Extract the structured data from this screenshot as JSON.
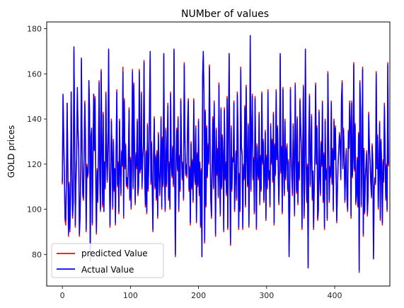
{
  "chart_data": {
    "type": "line",
    "title": "NUMber of values",
    "xlabel": "",
    "ylabel": "GOLD prices",
    "xlim": [
      -23,
      481
    ],
    "ylim": [
      66,
      183
    ],
    "x_ticks": [
      0,
      100,
      200,
      300,
      400
    ],
    "y_ticks": [
      80,
      100,
      120,
      140,
      160,
      180
    ],
    "grid": false,
    "legend_position": "lower-left",
    "series": [
      {
        "name": "predicted Value",
        "color": "#ff0000",
        "values": [
          111,
          150,
          133,
          114,
          95,
          93,
          113,
          147,
          121,
          88,
          112,
          90,
          106,
          152,
          118,
          96,
          104,
          170,
          138,
          92,
          113,
          124,
          153,
          136,
          127,
          88,
          96,
          117,
          166,
          128,
          106,
          104,
          126,
          148,
          131,
          90,
          120,
          114,
          116,
          157,
          143,
          79,
          133,
          135,
          93,
          122,
          151,
          127,
          150,
          115,
          89,
          118,
          103,
          125,
          157,
          113,
          99,
          162,
          128,
          101,
          143,
          99,
          120,
          109,
          152,
          124,
          112,
          130,
          170,
          119,
          92,
          113,
          140,
          124,
          100,
          131,
          108,
          117,
          93,
          128,
          153,
          110,
          121,
          98,
          140,
          117,
          106,
          126,
          119,
          163,
          96,
          149,
          118,
          129,
          110,
          113,
          109,
          124,
          145,
          104,
          123,
          100,
          126,
          162,
          109,
          156,
          127,
          102,
          125,
          118,
          140,
          106,
          110,
          162,
          116,
          119,
          152,
          109,
          123,
          128,
          166,
          113,
          101,
          126,
          98,
          138,
          108,
          121,
          145,
          169,
          111,
          130,
          109,
          90,
          125,
          141,
          109,
          124,
          104,
          126,
          96,
          134,
          116,
          106,
          118,
          141,
          100,
          132,
          110,
          168,
          117,
          99,
          136,
          110,
          125,
          147,
          104,
          121,
          100,
          152,
          121,
          114,
          128,
          110,
          170,
          118,
          79,
          122,
          136,
          117,
          141,
          99,
          124,
          108,
          149,
          126,
          113,
          121,
          104,
          165,
          134,
          115,
          120,
          114,
          139,
          149,
          108,
          119,
          93,
          130,
          109,
          122,
          103,
          149,
          116,
          111,
          137,
          94,
          125,
          110,
          140,
          106,
          121,
          92,
          118,
          79,
          158,
          169,
          152,
          85,
          144,
          101,
          137,
          114,
          129,
          120,
          164,
          131,
          104,
          96,
          121,
          141,
          109,
          148,
          123,
          88,
          136,
          115,
          127,
          105,
          156,
          114,
          97,
          145,
          109,
          133,
          124,
          90,
          145,
          113,
          121,
          106,
          150,
          91,
          137,
          168,
          113,
          84,
          137,
          108,
          123,
          122,
          148,
          99,
          114,
          126,
          104,
          152,
          133,
          91,
          116,
          99,
          163,
          128,
          125,
          91,
          120,
          113,
          146,
          101,
          155,
          124,
          110,
          138,
          92,
          119,
          176,
          108,
          135,
          151,
          113,
          123,
          98,
          150,
          126,
          91,
          129,
          116,
          113,
          143,
          102,
          124,
          108,
          152,
          120,
          131,
          103,
          118,
          135,
          95,
          124,
          109,
          153,
          113,
          116,
          101,
          138,
          120,
          131,
          112,
          143,
          93,
          129,
          115,
          153,
          123,
          137,
          118,
          102,
          120,
          168,
          116,
          128,
          98,
          154,
          117,
          106,
          140,
          113,
          126,
          129,
          108,
          122,
          81,
          101,
          154,
          126,
          114,
          106,
          138,
          123,
          97,
          156,
          127,
          107,
          141,
          102,
          121,
          113,
          149,
          137,
          128,
          91,
          125,
          155,
          96,
          113,
          170,
          125,
          103,
          120,
          75,
          133,
          151,
          110,
          124,
          142,
          104,
          116,
          91,
          110,
          125,
          156,
          121,
          137,
          95,
          99,
          144,
          113,
          106,
          130,
          119,
          148,
          103,
          125,
          91,
          140,
          113,
          118,
          95,
          161,
          132,
          103,
          119,
          114,
          148,
          111,
          127,
          99,
          140,
          123,
          137,
          116,
          94,
          108,
          121,
          127,
          134,
          130,
          113,
          150,
          157,
          119,
          136,
          124,
          103,
          119,
          127,
          105,
          99,
          135,
          128,
          148,
          138,
          96,
          148,
          114,
          123,
          165,
          117,
          138,
          102,
          106,
          123,
          101,
          134,
          72,
          157,
          143,
          101,
          124,
          163,
          88,
          127,
          98,
          113,
          120,
          126,
          97,
          105,
          143,
          128,
          122,
          111,
          105,
          129,
          121,
          79,
          109,
          113,
          111,
          161,
          119,
          133,
          100,
          116,
          139,
          95,
          131,
          118,
          93,
          122,
          112,
          147,
          126,
          104,
          120,
          99,
          165,
          119
        ]
      },
      {
        "name": "Actual Value",
        "color": "#0000ff",
        "values": [
          112,
          151,
          131,
          115,
          96,
          95,
          112,
          147,
          122,
          89,
          111,
          91,
          105,
          152,
          119,
          97,
          103,
          172,
          137,
          93,
          112,
          123,
          154,
          135,
          126,
          89,
          97,
          116,
          167,
          127,
          107,
          105,
          125,
          147,
          130,
          91,
          119,
          115,
          117,
          157,
          142,
          77,
          132,
          136,
          94,
          121,
          151,
          126,
          149,
          116,
          90,
          117,
          104,
          124,
          156,
          114,
          100,
          161,
          127,
          102,
          142,
          99,
          121,
          110,
          151,
          123,
          113,
          129,
          171,
          118,
          93,
          112,
          139,
          125,
          101,
          130,
          109,
          118,
          94,
          127,
          152,
          111,
          120,
          99,
          139,
          118,
          107,
          125,
          120,
          161,
          97,
          148,
          119,
          128,
          111,
          114,
          110,
          123,
          144,
          105,
          122,
          101,
          125,
          161,
          110,
          155,
          126,
          103,
          124,
          119,
          139,
          107,
          111,
          161,
          117,
          118,
          151,
          110,
          122,
          127,
          165,
          114,
          102,
          125,
          99,
          137,
          109,
          120,
          144,
          170,
          112,
          129,
          110,
          91,
          124,
          140,
          110,
          123,
          105,
          125,
          97,
          133,
          117,
          107,
          117,
          140,
          101,
          131,
          111,
          169,
          116,
          100,
          135,
          111,
          124,
          146,
          105,
          120,
          101,
          151,
          120,
          115,
          127,
          111,
          171,
          117,
          80,
          121,
          135,
          118,
          140,
          100,
          123,
          109,
          148,
          125,
          114,
          120,
          105,
          164,
          133,
          116,
          119,
          115,
          138,
          148,
          109,
          118,
          94,
          129,
          110,
          121,
          104,
          148,
          117,
          112,
          136,
          95,
          124,
          111,
          139,
          107,
          120,
          93,
          117,
          79,
          159,
          170,
          151,
          86,
          143,
          102,
          136,
          115,
          128,
          121,
          163,
          130,
          105,
          97,
          120,
          140,
          110,
          147,
          122,
          89,
          135,
          116,
          126,
          106,
          155,
          115,
          98,
          144,
          110,
          132,
          123,
          91,
          144,
          114,
          120,
          107,
          149,
          92,
          136,
          169,
          114,
          85,
          136,
          109,
          122,
          121,
          147,
          100,
          115,
          125,
          105,
          151,
          132,
          92,
          115,
          100,
          162,
          127,
          124,
          92,
          119,
          114,
          145,
          102,
          154,
          123,
          111,
          137,
          93,
          118,
          177,
          109,
          134,
          150,
          114,
          122,
          99,
          149,
          125,
          92,
          128,
          117,
          114,
          142,
          103,
          123,
          109,
          151,
          121,
          130,
          104,
          117,
          134,
          96,
          123,
          110,
          152,
          114,
          117,
          102,
          137,
          121,
          130,
          113,
          142,
          94,
          128,
          116,
          152,
          122,
          136,
          119,
          103,
          119,
          169,
          117,
          127,
          99,
          153,
          118,
          107,
          139,
          114,
          125,
          128,
          109,
          121,
          79,
          102,
          153,
          125,
          115,
          107,
          137,
          122,
          98,
          155,
          126,
          108,
          140,
          103,
          120,
          114,
          148,
          136,
          127,
          92,
          124,
          154,
          97,
          114,
          171,
          124,
          104,
          119,
          74,
          132,
          150,
          111,
          123,
          141,
          105,
          117,
          92,
          111,
          124,
          155,
          120,
          136,
          96,
          100,
          143,
          114,
          107,
          129,
          120,
          147,
          104,
          124,
          92,
          139,
          114,
          117,
          96,
          160,
          131,
          104,
          118,
          115,
          147,
          112,
          126,
          100,
          139,
          122,
          136,
          117,
          95,
          109,
          120,
          126,
          133,
          129,
          114,
          149,
          156,
          118,
          135,
          123,
          104,
          118,
          126,
          106,
          100,
          134,
          127,
          147,
          137,
          97,
          147,
          115,
          122,
          164,
          118,
          137,
          103,
          107,
          122,
          102,
          133,
          73,
          156,
          142,
          102,
          123,
          162,
          89,
          126,
          99,
          114,
          119,
          125,
          98,
          106,
          142,
          127,
          121,
          112,
          106,
          128,
          120,
          78,
          110,
          114,
          112,
          160,
          118,
          132,
          101,
          117,
          138,
          96,
          130,
          119,
          94,
          121,
          113,
          146,
          125,
          105,
          119,
          100,
          164,
          120
        ]
      }
    ]
  }
}
